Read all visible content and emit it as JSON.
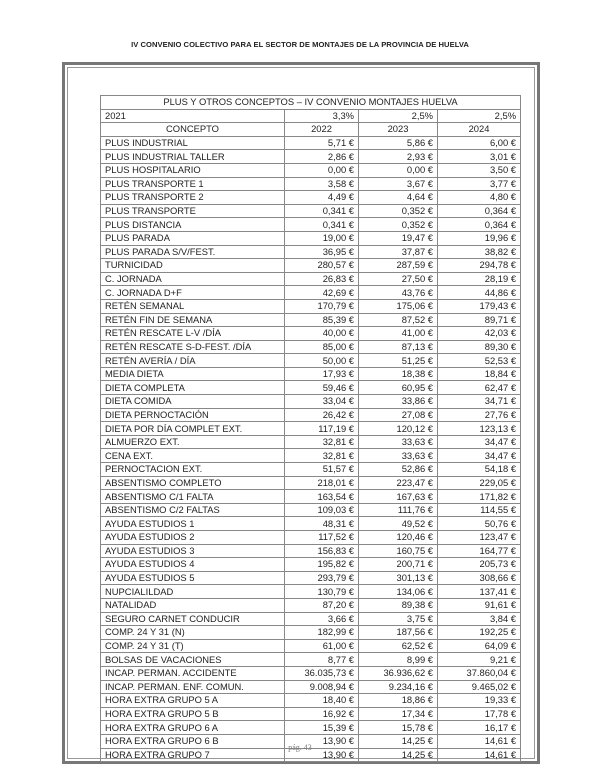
{
  "header": {
    "title": "IV CONVENIO COLECTIVO PARA EL SECTOR DE MONTAJES DE LA PROVINCIA DE HUELVA"
  },
  "table": {
    "title": "PLUS Y OTROS CONCEPTOS – IV CONVENIO MONTAJES HUELVA",
    "base_year": "2021",
    "increments": [
      "3,3%",
      "2,5%",
      "2,5%"
    ],
    "concept_header": "CONCEPTO",
    "years": [
      "2022",
      "2023",
      "2024"
    ],
    "rows": [
      {
        "concept": "PLUS INDUSTRIAL",
        "values": [
          "5,71 €",
          "5,86 €",
          "6,00 €"
        ]
      },
      {
        "concept": "PLUS INDUSTRIAL TALLER",
        "values": [
          "2,86 €",
          "2,93 €",
          "3,01 €"
        ]
      },
      {
        "concept": "PLUS HOSPITALARIO",
        "values": [
          "0,00 €",
          "0,00 €",
          "3,50 €"
        ]
      },
      {
        "concept": "PLUS TRANSPORTE 1",
        "values": [
          "3,58 €",
          "3,67 €",
          "3,77 €"
        ]
      },
      {
        "concept": "PLUS TRANSPORTE 2",
        "values": [
          "4,49 €",
          "4,64 €",
          "4,80 €"
        ]
      },
      {
        "concept": "PLUS TRANSPORTE",
        "values": [
          "0,341 €",
          "0,352 €",
          "0,364 €"
        ]
      },
      {
        "concept": "PLUS DISTANCIA",
        "values": [
          "0,341 €",
          "0,352 €",
          "0,364 €"
        ]
      },
      {
        "concept": "PLUS PARADA",
        "values": [
          "19,00 €",
          "19,47 €",
          "19,96 €"
        ]
      },
      {
        "concept": "PLUS PARADA S/V/FEST.",
        "values": [
          "36,95 €",
          "37,87 €",
          "38,82 €"
        ]
      },
      {
        "concept": "TURNICIDAD",
        "values": [
          "280,57 €",
          "287,59 €",
          "294,78 €"
        ]
      },
      {
        "concept": "C. JORNADA",
        "values": [
          "26,83 €",
          "27,50 €",
          "28,19 €"
        ]
      },
      {
        "concept": "C. JORNADA D+F",
        "values": [
          "42,69 €",
          "43,76 €",
          "44,86 €"
        ]
      },
      {
        "concept": "RETÉN SEMANAL",
        "values": [
          "170,79 €",
          "175,06 €",
          "179,43 €"
        ]
      },
      {
        "concept": "RETÉN FIN DE SEMANA",
        "values": [
          "85,39 €",
          "87,52 €",
          "89,71 €"
        ]
      },
      {
        "concept": "RETÉN RESCATE L-V /DÍA",
        "values": [
          "40,00 €",
          "41,00 €",
          "42,03 €"
        ]
      },
      {
        "concept": "RETÉN RESCATE S-D-FEST. /DÍA",
        "values": [
          "85,00 €",
          "87,13 €",
          "89,30 €"
        ]
      },
      {
        "concept": "RETÉN AVERÍA / DÍA",
        "values": [
          "50,00 €",
          "51,25 €",
          "52,53 €"
        ]
      },
      {
        "concept": "MEDIA DIETA",
        "values": [
          "17,93 €",
          "18,38 €",
          "18,84 €"
        ]
      },
      {
        "concept": "DIETA COMPLETA",
        "values": [
          "59,46 €",
          "60,95 €",
          "62,47 €"
        ]
      },
      {
        "concept": "DIETA COMIDA",
        "values": [
          "33,04 €",
          "33,86 €",
          "34,71 €"
        ]
      },
      {
        "concept": "DIETA PERNOCTACIÓN",
        "values": [
          "26,42 €",
          "27,08 €",
          "27,76 €"
        ]
      },
      {
        "concept": "DIETA POR DÍA COMPLET EXT.",
        "values": [
          "117,19 €",
          "120,12 €",
          "123,13 €"
        ]
      },
      {
        "concept": "ALMUERZO EXT.",
        "values": [
          "32,81 €",
          "33,63 €",
          "34,47 €"
        ]
      },
      {
        "concept": "CENA EXT.",
        "values": [
          "32,81 €",
          "33,63 €",
          "34,47 €"
        ]
      },
      {
        "concept": "PERNOCTACION EXT.",
        "values": [
          "51,57 €",
          "52,86 €",
          "54,18 €"
        ]
      },
      {
        "concept": "ABSENTISMO COMPLETO",
        "values": [
          "218,01 €",
          "223,47 €",
          "229,05 €"
        ]
      },
      {
        "concept": "ABSENTISMO C/1 FALTA",
        "values": [
          "163,54 €",
          "167,63 €",
          "171,82 €"
        ]
      },
      {
        "concept": "ABSENTISMO C/2 FALTAS",
        "values": [
          "109,03 €",
          "111,76 €",
          "114,55 €"
        ]
      },
      {
        "concept": "AYUDA ESTUDIOS 1",
        "values": [
          "48,31 €",
          "49,52 €",
          "50,76 €"
        ]
      },
      {
        "concept": "AYUDA ESTUDIOS 2",
        "values": [
          "117,52 €",
          "120,46 €",
          "123,47 €"
        ]
      },
      {
        "concept": "AYUDA ESTUDIOS 3",
        "values": [
          "156,83 €",
          "160,75 €",
          "164,77 €"
        ]
      },
      {
        "concept": "AYUDA ESTUDIOS 4",
        "values": [
          "195,82 €",
          "200,71 €",
          "205,73 €"
        ]
      },
      {
        "concept": "AYUDA ESTUDIOS 5",
        "values": [
          "293,79 €",
          "301,13 €",
          "308,66 €"
        ]
      },
      {
        "concept": "NUPCIALILDAD",
        "values": [
          "130,79 €",
          "134,06 €",
          "137,41 €"
        ]
      },
      {
        "concept": "NATALIDAD",
        "values": [
          "87,20 €",
          "89,38 €",
          "91,61 €"
        ]
      },
      {
        "concept": "SEGURO CARNET CONDUCIR",
        "values": [
          "3,66 €",
          "3,75 €",
          "3,84 €"
        ]
      },
      {
        "concept": "COMP. 24 Y 31 (N)",
        "values": [
          "182,99 €",
          "187,56 €",
          "192,25 €"
        ]
      },
      {
        "concept": "COMP. 24 Y 31 (T)",
        "values": [
          "61,00 €",
          "62,52 €",
          "64,09 €"
        ]
      },
      {
        "concept": "BOLSAS DE VACACIONES",
        "values": [
          "8,77 €",
          "8,99 €",
          "9,21 €"
        ]
      },
      {
        "concept": "INCAP. PERMAN. ACCIDENTE",
        "values": [
          "36.035,73 €",
          "36.936,62 €",
          "37.860,04 €"
        ]
      },
      {
        "concept": "INCAP. PERMAN. ENF. COMUN.",
        "values": [
          "9.008,94 €",
          "9.234,16 €",
          "9.465,02 €"
        ]
      },
      {
        "concept": "HORA EXTRA GRUPO 5 A",
        "values": [
          "18,40 €",
          "18,86 €",
          "19,33 €"
        ]
      },
      {
        "concept": "HORA EXTRA GRUPO 5 B",
        "values": [
          "16,92 €",
          "17,34 €",
          "17,78 €"
        ]
      },
      {
        "concept": "HORA EXTRA GRUPO 6 A",
        "values": [
          "15,39 €",
          "15,78 €",
          "16,17 €"
        ]
      },
      {
        "concept": "HORA EXTRA GRUPO 6 B",
        "values": [
          "13,90 €",
          "14,25 €",
          "14,61 €"
        ]
      },
      {
        "concept": "HORA EXTRA GRUPO 7",
        "values": [
          "13,90 €",
          "14,25 €",
          "14,61 €"
        ]
      }
    ]
  },
  "footer": {
    "page": "pág. 43"
  }
}
